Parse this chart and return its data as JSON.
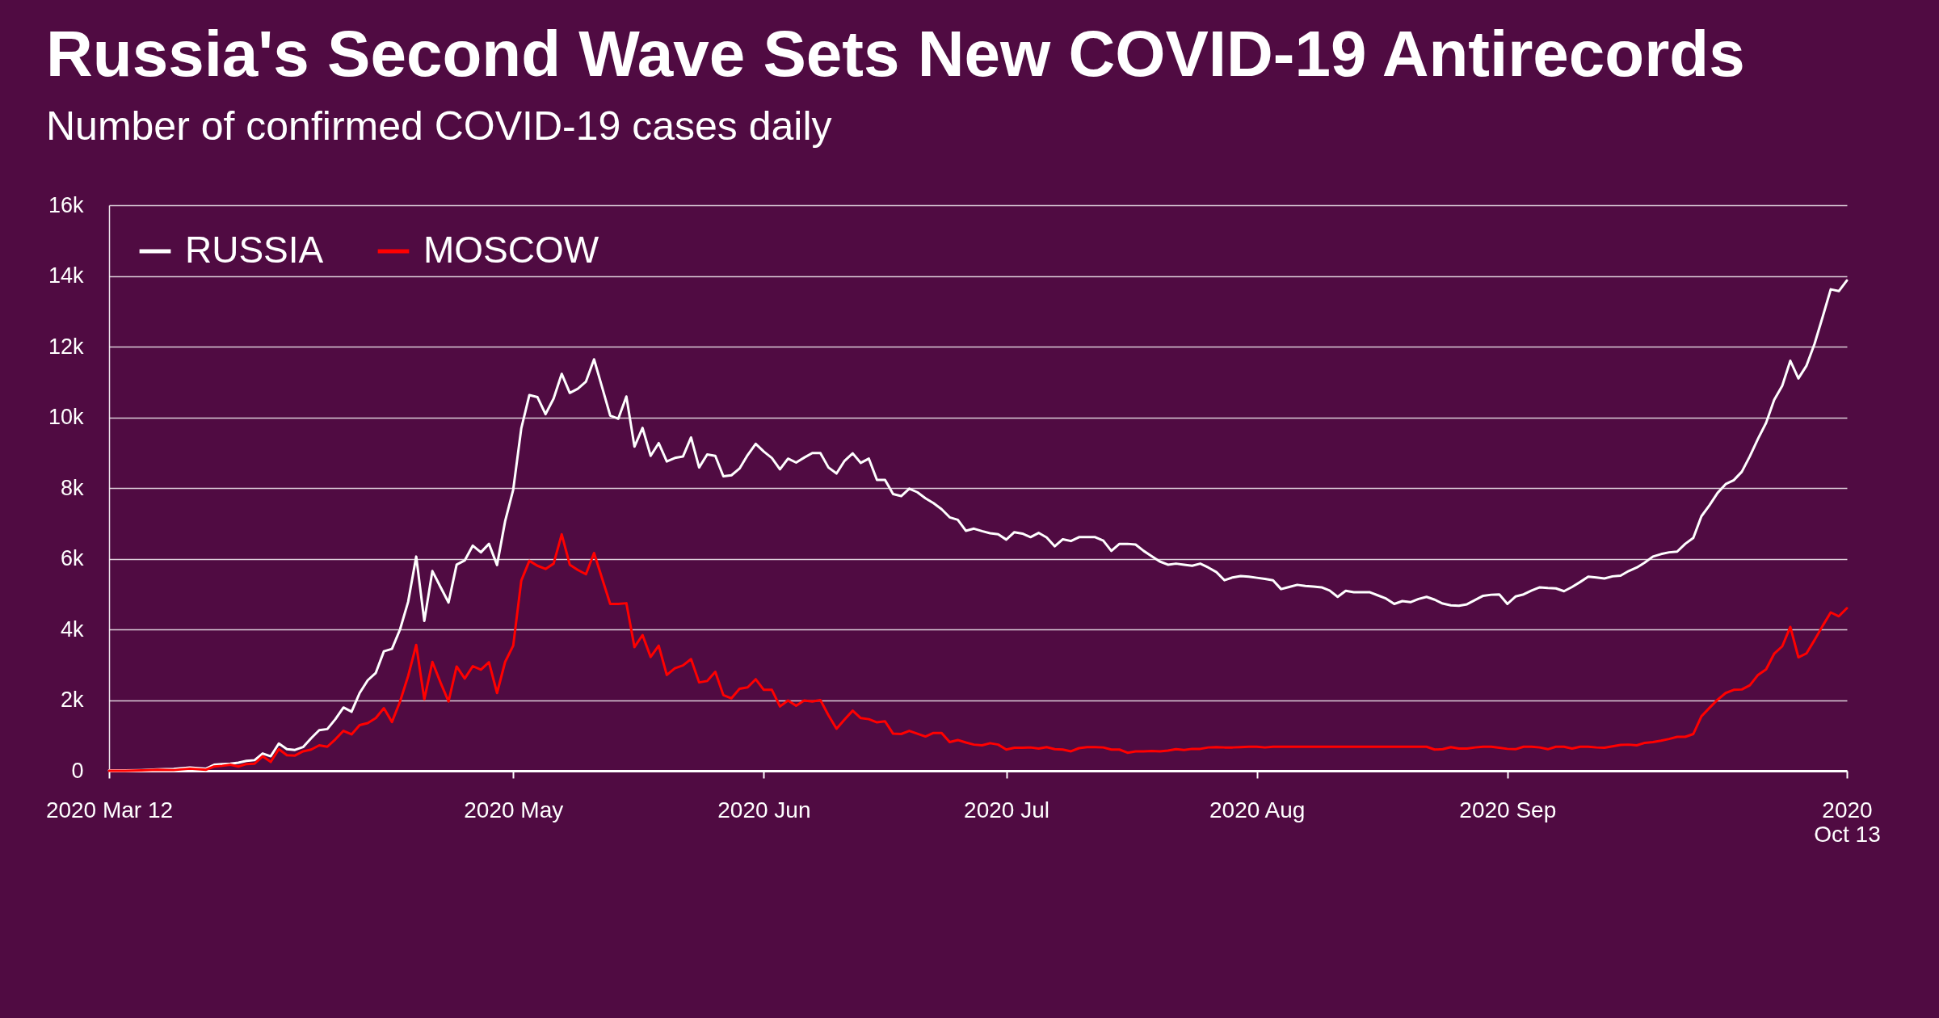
{
  "chart_data": {
    "type": "line",
    "title": "Russia's Second Wave Sets New COVID-19 Antirecords",
    "subtitle": "Number of confirmed COVID-19 cases daily",
    "x": [
      "2020-03-12",
      "2020-03-14",
      "2020-03-16",
      "2020-03-18",
      "2020-03-20",
      "2020-03-22",
      "2020-03-24",
      "2020-03-25",
      "2020-03-26",
      "2020-03-27",
      "2020-03-28",
      "2020-03-29",
      "2020-03-30",
      "2020-03-31",
      "2020-04-01",
      "2020-04-02",
      "2020-04-03",
      "2020-04-04",
      "2020-04-05",
      "2020-04-06",
      "2020-04-07",
      "2020-04-08",
      "2020-04-09",
      "2020-04-10",
      "2020-04-11",
      "2020-04-12",
      "2020-04-13",
      "2020-04-14",
      "2020-04-15",
      "2020-04-16",
      "2020-04-17",
      "2020-04-18",
      "2020-04-19",
      "2020-04-20",
      "2020-04-21",
      "2020-04-22",
      "2020-04-23",
      "2020-04-24",
      "2020-04-25",
      "2020-04-26",
      "2020-04-27",
      "2020-04-28",
      "2020-04-29",
      "2020-04-30",
      "2020-05-01",
      "2020-05-02",
      "2020-05-03",
      "2020-05-04",
      "2020-05-05",
      "2020-05-06",
      "2020-05-07",
      "2020-05-08",
      "2020-05-09",
      "2020-05-10",
      "2020-05-11",
      "2020-05-12",
      "2020-05-13",
      "2020-05-14",
      "2020-05-15",
      "2020-05-16",
      "2020-05-17",
      "2020-05-18",
      "2020-05-19",
      "2020-05-20",
      "2020-05-21",
      "2020-05-22",
      "2020-05-23",
      "2020-05-24",
      "2020-05-25",
      "2020-05-26",
      "2020-05-27",
      "2020-05-28",
      "2020-05-29",
      "2020-05-30",
      "2020-05-31",
      "2020-06-01",
      "2020-06-02",
      "2020-06-03",
      "2020-06-04",
      "2020-06-05",
      "2020-06-06",
      "2020-06-07",
      "2020-06-08",
      "2020-06-09",
      "2020-06-10",
      "2020-06-11",
      "2020-06-12",
      "2020-06-13",
      "2020-06-14",
      "2020-06-15",
      "2020-06-16",
      "2020-06-17",
      "2020-06-18",
      "2020-06-19",
      "2020-06-20",
      "2020-06-21",
      "2020-06-22",
      "2020-06-23",
      "2020-06-24",
      "2020-06-25",
      "2020-06-26",
      "2020-06-27",
      "2020-06-28",
      "2020-06-29",
      "2020-06-30",
      "2020-07-01",
      "2020-07-02",
      "2020-07-03",
      "2020-07-04",
      "2020-07-05",
      "2020-07-06",
      "2020-07-07",
      "2020-07-08",
      "2020-07-09",
      "2020-07-10",
      "2020-07-11",
      "2020-07-12",
      "2020-07-13",
      "2020-07-14",
      "2020-07-15",
      "2020-07-16",
      "2020-07-17",
      "2020-07-18",
      "2020-07-19",
      "2020-07-20",
      "2020-07-21",
      "2020-07-22",
      "2020-07-23",
      "2020-07-24",
      "2020-07-25",
      "2020-07-26",
      "2020-07-27",
      "2020-07-28",
      "2020-07-29",
      "2020-07-30",
      "2020-07-31",
      "2020-08-01",
      "2020-08-02",
      "2020-08-03",
      "2020-08-04",
      "2020-08-05",
      "2020-08-06",
      "2020-08-07",
      "2020-08-08",
      "2020-08-09",
      "2020-08-10",
      "2020-08-11",
      "2020-08-12",
      "2020-08-13",
      "2020-08-14",
      "2020-08-15",
      "2020-08-16",
      "2020-08-17",
      "2020-08-18",
      "2020-08-19",
      "2020-08-20",
      "2020-08-21",
      "2020-08-22",
      "2020-08-23",
      "2020-08-24",
      "2020-08-25",
      "2020-08-26",
      "2020-08-27",
      "2020-08-28",
      "2020-08-29",
      "2020-08-30",
      "2020-08-31",
      "2020-09-01",
      "2020-09-02",
      "2020-09-03",
      "2020-09-04",
      "2020-09-05",
      "2020-09-06",
      "2020-09-07",
      "2020-09-08",
      "2020-09-09",
      "2020-09-10",
      "2020-09-11",
      "2020-09-12",
      "2020-09-13",
      "2020-09-14",
      "2020-09-15",
      "2020-09-16",
      "2020-09-17",
      "2020-09-18",
      "2020-09-19",
      "2020-09-20",
      "2020-09-21",
      "2020-09-22",
      "2020-09-23",
      "2020-09-24",
      "2020-09-25",
      "2020-09-26",
      "2020-09-27",
      "2020-09-28",
      "2020-09-29",
      "2020-09-30",
      "2020-10-01",
      "2020-10-02",
      "2020-10-03",
      "2020-10-04",
      "2020-10-05",
      "2020-10-06",
      "2020-10-07",
      "2020-10-08",
      "2020-10-09",
      "2020-10-10",
      "2020-10-11",
      "2020-10-12",
      "2020-10-13"
    ],
    "series": [
      {
        "name": "RUSSIA",
        "color": "#ffffff",
        "values": [
          10,
          10,
          20,
          40,
          50,
          90,
          60,
          170,
          190,
          200,
          230,
          280,
          300,
          490,
          410,
          770,
          610,
          590,
          670,
          920,
          1150,
          1180,
          1460,
          1790,
          1670,
          2200,
          2560,
          2770,
          3380,
          3450,
          4000,
          4780,
          6060,
          4240,
          5650,
          5200,
          4760,
          5830,
          5950,
          6370,
          6180,
          6420,
          5820,
          7060,
          7950,
          9690,
          10630,
          10570,
          10090,
          10530,
          11230,
          10690,
          10810,
          11010,
          11640,
          10850,
          10050,
          9960,
          10590,
          9170,
          9700,
          8910,
          9270,
          8750,
          8850,
          8890,
          9430,
          8580,
          8950,
          8910,
          8330,
          8360,
          8550,
          8930,
          9250,
          9030,
          8850,
          8530,
          8830,
          8720,
          8860,
          8990,
          8990,
          8580,
          8410,
          8770,
          8980,
          8710,
          8830,
          8230,
          8230,
          7830,
          7770,
          7980,
          7880,
          7710,
          7570,
          7400,
          7170,
          7100,
          6790,
          6850,
          6780,
          6720,
          6690,
          6540,
          6750,
          6710,
          6610,
          6730,
          6600,
          6350,
          6550,
          6500,
          6610,
          6610,
          6610,
          6510,
          6220,
          6420,
          6420,
          6400,
          6220,
          6070,
          5920,
          5830,
          5860,
          5830,
          5800,
          5860,
          5750,
          5620,
          5390,
          5470,
          5510,
          5490,
          5460,
          5430,
          5390,
          5140,
          5200,
          5260,
          5230,
          5210,
          5190,
          5100,
          4920,
          5090,
          5050,
          5050,
          5050,
          4960,
          4870,
          4720,
          4800,
          4770,
          4860,
          4920,
          4840,
          4730,
          4680,
          4670,
          4710,
          4830,
          4950,
          4980,
          4990,
          4720,
          4930,
          4990,
          5100,
          5190,
          5170,
          5160,
          5080,
          5200,
          5340,
          5490,
          5470,
          5440,
          5500,
          5520,
          5650,
          5750,
          5890,
          6060,
          6130,
          6180,
          6200,
          6420,
          6590,
          7200,
          7510,
          7860,
          8110,
          8220,
          8460,
          8900,
          9390,
          9840,
          10490,
          10890,
          11600,
          11100,
          11460,
          12080,
          12840,
          13620,
          13570,
          13870
        ]
      },
      {
        "name": "MOSCOW",
        "color": "#ff0000",
        "values": [
          0,
          0,
          10,
          30,
          20,
          60,
          30,
          120,
          140,
          170,
          120,
          190,
          200,
          410,
          250,
          610,
          440,
          430,
          550,
          600,
          720,
          680,
          890,
          1130,
          1030,
          1290,
          1350,
          1490,
          1770,
          1380,
          1960,
          2680,
          3560,
          2020,
          3080,
          2500,
          1960,
          2950,
          2610,
          2960,
          2860,
          3070,
          2200,
          3080,
          3540,
          5380,
          5940,
          5800,
          5710,
          5860,
          6690,
          5830,
          5680,
          5560,
          6160,
          5440,
          4720,
          4720,
          4740,
          3500,
          3840,
          3220,
          3540,
          2710,
          2900,
          2980,
          3160,
          2500,
          2540,
          2800,
          2140,
          2050,
          2320,
          2360,
          2590,
          2290,
          2290,
          1820,
          1990,
          1840,
          1990,
          1960,
          2000,
          1570,
          1190,
          1450,
          1700,
          1490,
          1460,
          1370,
          1400,
          1050,
          1040,
          1130,
          1050,
          970,
          1070,
          1070,
          810,
          870,
          800,
          740,
          720,
          780,
          740,
          600,
          650,
          650,
          660,
          630,
          670,
          610,
          600,
          550,
          640,
          670,
          670,
          660,
          600,
          600,
          510,
          550,
          550,
          560,
          550,
          570,
          610,
          590,
          620,
          620,
          660,
          670,
          660,
          660,
          670,
          680,
          680,
          660,
          680,
          680,
          680,
          680,
          680,
          680,
          680,
          680,
          680,
          680,
          680,
          680,
          680,
          680,
          680,
          680,
          680,
          680,
          680,
          680,
          600,
          610,
          670,
          630,
          630,
          660,
          680,
          680,
          650,
          620,
          610,
          680,
          680,
          660,
          610,
          680,
          680,
          630,
          680,
          680,
          660,
          650,
          690,
          730,
          740,
          720,
          790,
          810,
          850,
          900,
          960,
          960,
          1040,
          1540,
          1780,
          2010,
          2200,
          2290,
          2300,
          2420,
          2710,
          2870,
          3310,
          3520,
          4070,
          3210,
          3320,
          3700,
          4100,
          4480,
          4370,
          4600
        ]
      }
    ],
    "xlim": [
      "2020-03-12",
      "2020-10-13"
    ],
    "xticks": [
      {
        "value": "2020-03-12",
        "label": "2020 Mar 12"
      },
      {
        "value": "2020-05-01",
        "label": "2020 May"
      },
      {
        "value": "2020-06-01",
        "label": "2020 Jun"
      },
      {
        "value": "2020-07-01",
        "label": "2020 Jul"
      },
      {
        "value": "2020-08-01",
        "label": "2020 Aug"
      },
      {
        "value": "2020-09-01",
        "label": "2020 Sep"
      },
      {
        "value": "2020-10-13",
        "label": "2020\nOct 13"
      }
    ],
    "ylim": [
      0,
      16000
    ],
    "yticks": [
      0,
      {
        "value": 2000,
        "label": "2k"
      },
      {
        "value": 4000,
        "label": "4k"
      },
      {
        "value": 6000,
        "label": "6k"
      },
      {
        "value": 8000,
        "label": "8k"
      },
      {
        "value": 10000,
        "label": "10k"
      },
      {
        "value": 12000,
        "label": "12k"
      },
      {
        "value": 14000,
        "label": "14k"
      },
      {
        "value": 16000,
        "label": "16k"
      }
    ],
    "grid": "y",
    "legend": "top left"
  }
}
